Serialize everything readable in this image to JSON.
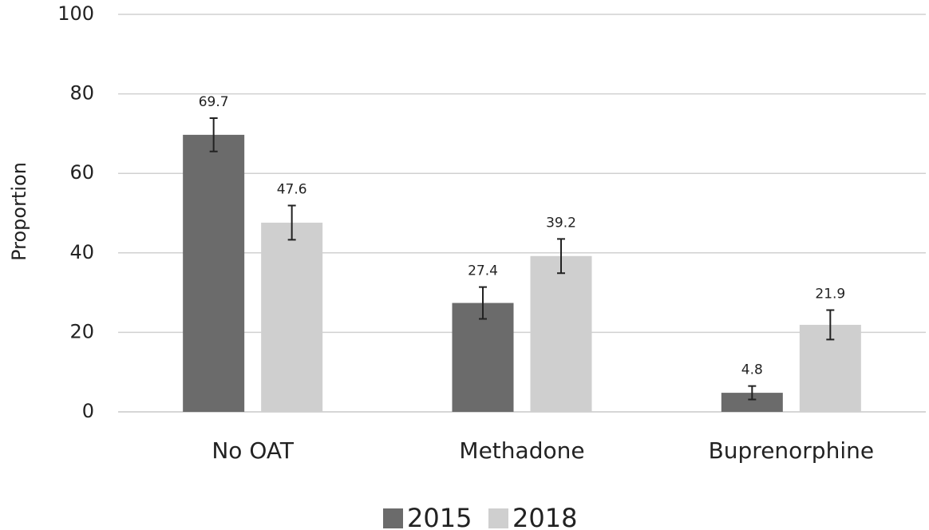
{
  "chart_data": {
    "type": "bar",
    "y_label": "Proportion",
    "categories": [
      "No OAT",
      "Methadone",
      "Buprenorphine"
    ],
    "series": [
      {
        "name": "2015",
        "color": "#6b6b6b",
        "values": [
          69.7,
          27.4,
          4.8
        ],
        "errors": [
          4.2,
          4.0,
          1.7
        ]
      },
      {
        "name": "2018",
        "color": "#cfcfcf",
        "values": [
          47.6,
          39.2,
          21.9
        ],
        "errors": [
          4.3,
          4.3,
          3.7
        ]
      }
    ],
    "ylim": [
      0,
      100
    ],
    "yticks": [
      0,
      20,
      40,
      60,
      80,
      100
    ],
    "grid": true,
    "legend": "bottom"
  }
}
